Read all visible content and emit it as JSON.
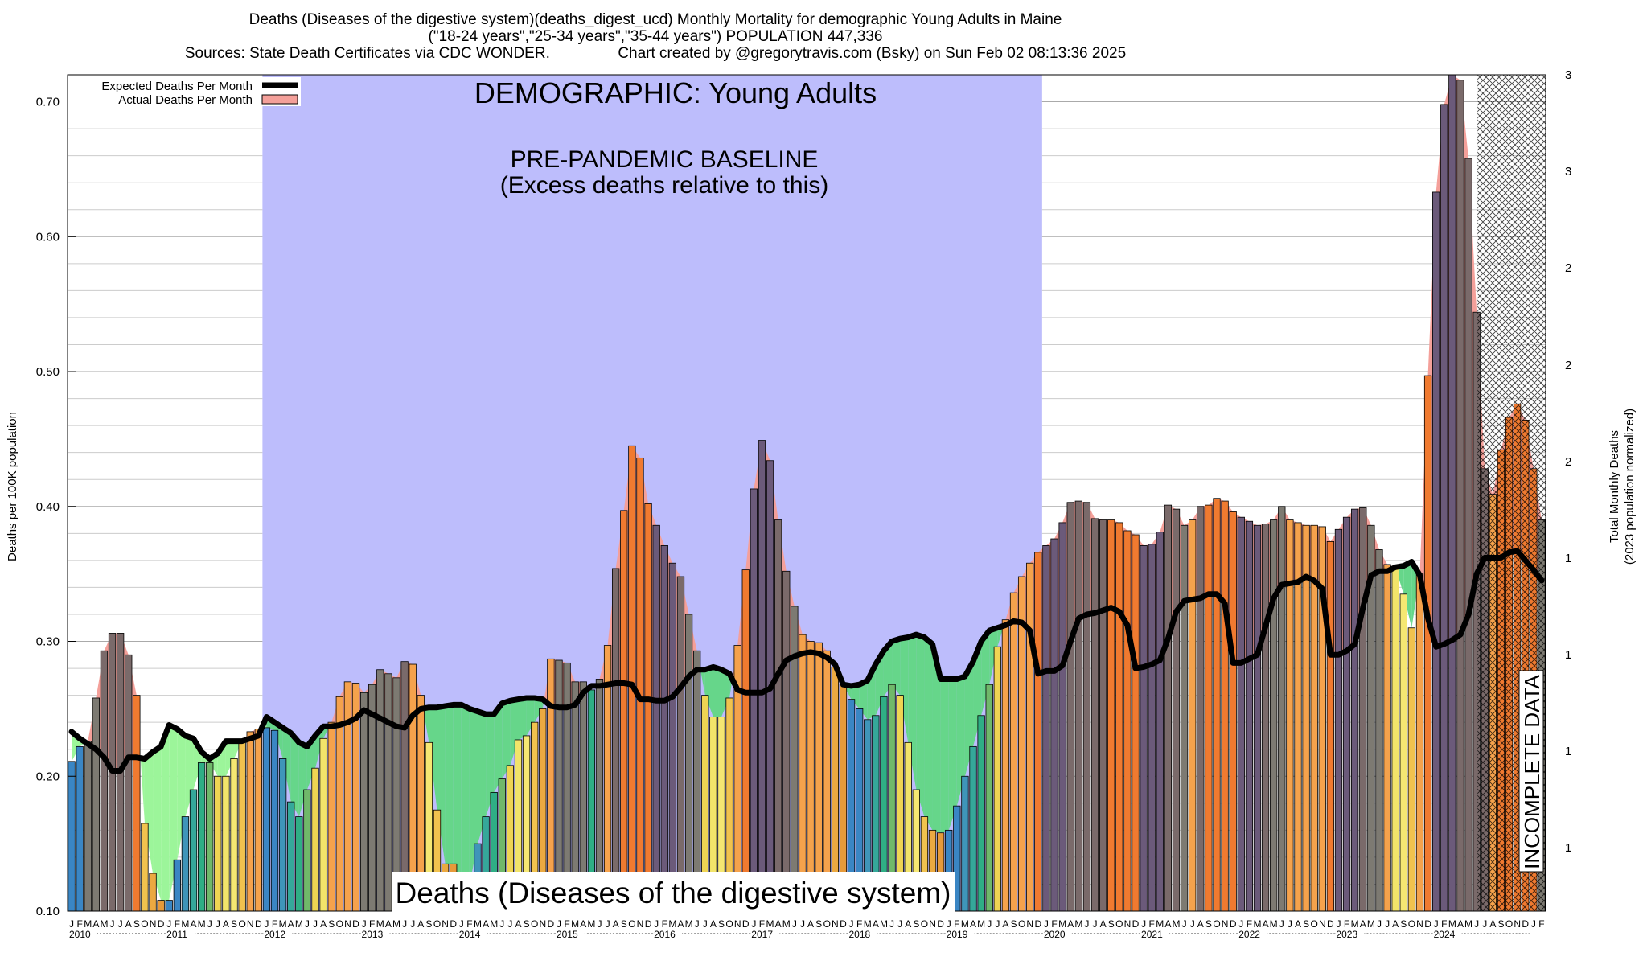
{
  "header": {
    "line1": "Deaths (Diseases of the digestive system)(deaths_digest_ucd) Monthly Mortality for demographic Young Adults in Maine",
    "line2": "(\"18-24 years\",\"25-34 years\",\"35-44 years\") POPULATION 447,336",
    "line3": "Sources: State Death Certificates via CDC WONDER.                Chart created by @gregorytravis.com (Bsky) on Sun Feb 02 08:13:36 2025"
  },
  "legend": {
    "expected": "Expected Deaths Per Month",
    "actual": "Actual Deaths Per Month"
  },
  "annotations": {
    "demographic": "DEMOGRAPHIC: Young Adults",
    "baseline_line1": "PRE-PANDEMIC BASELINE",
    "baseline_line2": "(Excess deaths relative to this)",
    "cause": "Deaths (Diseases of the digestive system)",
    "incomplete": "INCOMPLETE DATA"
  },
  "colors": {
    "baseline_band": "#bdbdfc",
    "excess_fill": "#f4a09a",
    "deficit_fill": "#66d68a",
    "deficit_fill_light": "#9cf59a",
    "expected_line": "#000000"
  },
  "chart_data": {
    "type": "bar",
    "ylabel": "Deaths per 100K population",
    "y2label_line1": "Total Monthly Deaths",
    "y2label_line2": "(2023 population normalized)",
    "ylim": [
      0.1,
      0.72
    ],
    "y_ticks": [
      "0.10",
      "0.20",
      "0.30",
      "0.40",
      "0.50",
      "0.60",
      "0.70"
    ],
    "y2_ticks": [
      "1",
      "1",
      "1",
      "1",
      "2",
      "2",
      "2",
      "3",
      "3"
    ],
    "months": [
      "J",
      "F",
      "M",
      "A",
      "M",
      "J",
      "J",
      "A",
      "S",
      "O",
      "N",
      "D"
    ],
    "years": [
      "2010",
      "2011",
      "2012",
      "2013",
      "2014",
      "2015",
      "2016",
      "2017",
      "2018",
      "2019",
      "2020",
      "2021",
      "2022",
      "2023",
      "2024"
    ],
    "baseline_period": [
      "2012-01",
      "2019-12"
    ],
    "incomplete_from": "2024-07",
    "grid": true,
    "legend_position": "top-left",
    "actual": [
      0.211,
      0.222,
      0.226,
      0.258,
      0.293,
      0.306,
      0.306,
      0.29,
      0.26,
      0.165,
      0.128,
      0.108,
      0.108,
      0.138,
      0.17,
      0.19,
      0.21,
      0.21,
      0.2,
      0.2,
      0.213,
      0.226,
      0.233,
      0.235,
      0.236,
      0.234,
      0.213,
      0.181,
      0.17,
      0.19,
      0.206,
      0.228,
      0.24,
      0.259,
      0.27,
      0.269,
      0.262,
      0.268,
      0.279,
      0.276,
      0.273,
      0.285,
      0.283,
      0.26,
      0.225,
      0.175,
      0.135,
      0.135,
      0.12,
      0.12,
      0.15,
      0.17,
      0.188,
      0.198,
      0.208,
      0.227,
      0.23,
      0.24,
      0.25,
      0.287,
      0.286,
      0.284,
      0.27,
      0.27,
      0.264,
      0.272,
      0.297,
      0.354,
      0.397,
      0.445,
      0.436,
      0.402,
      0.386,
      0.371,
      0.358,
      0.348,
      0.32,
      0.293,
      0.26,
      0.244,
      0.244,
      0.258,
      0.297,
      0.353,
      0.413,
      0.449,
      0.434,
      0.39,
      0.352,
      0.326,
      0.305,
      0.3,
      0.299,
      0.293,
      0.281,
      0.268,
      0.257,
      0.25,
      0.242,
      0.245,
      0.259,
      0.268,
      0.26,
      0.225,
      0.19,
      0.17,
      0.16,
      0.158,
      0.16,
      0.178,
      0.2,
      0.222,
      0.245,
      0.268,
      0.296,
      0.316,
      0.336,
      0.348,
      0.358,
      0.366,
      0.371,
      0.376,
      0.388,
      0.403,
      0.404,
      0.403,
      0.391,
      0.39,
      0.39,
      0.388,
      0.382,
      0.379,
      0.371,
      0.372,
      0.381,
      0.401,
      0.398,
      0.386,
      0.39,
      0.4,
      0.401,
      0.406,
      0.404,
      0.396,
      0.392,
      0.389,
      0.386,
      0.387,
      0.39,
      0.4,
      0.39,
      0.388,
      0.386,
      0.386,
      0.385,
      0.374,
      0.383,
      0.392,
      0.398,
      0.399,
      0.386,
      0.368,
      0.357,
      0.355,
      0.335,
      0.31,
      0.35,
      0.497,
      0.633,
      0.698,
      0.72,
      0.716,
      0.658,
      0.544,
      0.428,
      0.409,
      0.442,
      0.466,
      0.476,
      0.464,
      0.428,
      0.39
    ],
    "expected": [
      0.233,
      0.228,
      0.224,
      0.22,
      0.214,
      0.204,
      0.204,
      0.214,
      0.214,
      0.213,
      0.218,
      0.222,
      0.238,
      0.235,
      0.23,
      0.228,
      0.218,
      0.213,
      0.217,
      0.226,
      0.226,
      0.226,
      0.228,
      0.23,
      0.244,
      0.24,
      0.236,
      0.232,
      0.225,
      0.222,
      0.23,
      0.237,
      0.237,
      0.238,
      0.24,
      0.243,
      0.249,
      0.246,
      0.243,
      0.24,
      0.237,
      0.236,
      0.245,
      0.25,
      0.251,
      0.251,
      0.252,
      0.253,
      0.253,
      0.25,
      0.248,
      0.246,
      0.246,
      0.254,
      0.256,
      0.257,
      0.258,
      0.258,
      0.257,
      0.252,
      0.251,
      0.251,
      0.253,
      0.262,
      0.267,
      0.267,
      0.268,
      0.269,
      0.269,
      0.268,
      0.257,
      0.257,
      0.256,
      0.256,
      0.259,
      0.266,
      0.274,
      0.279,
      0.279,
      0.281,
      0.279,
      0.276,
      0.264,
      0.262,
      0.262,
      0.262,
      0.265,
      0.276,
      0.286,
      0.289,
      0.291,
      0.292,
      0.291,
      0.288,
      0.283,
      0.268,
      0.267,
      0.268,
      0.271,
      0.283,
      0.293,
      0.3,
      0.302,
      0.303,
      0.305,
      0.303,
      0.298,
      0.272,
      0.272,
      0.272,
      0.274,
      0.285,
      0.3,
      0.308,
      0.31,
      0.312,
      0.315,
      0.314,
      0.308,
      0.276,
      0.278,
      0.278,
      0.282,
      0.3,
      0.317,
      0.32,
      0.321,
      0.323,
      0.325,
      0.322,
      0.312,
      0.28,
      0.281,
      0.283,
      0.286,
      0.302,
      0.322,
      0.33,
      0.331,
      0.332,
      0.335,
      0.335,
      0.328,
      0.284,
      0.284,
      0.287,
      0.29,
      0.311,
      0.332,
      0.342,
      0.343,
      0.344,
      0.348,
      0.345,
      0.339,
      0.29,
      0.29,
      0.293,
      0.298,
      0.325,
      0.349,
      0.352,
      0.352,
      0.355,
      0.356,
      0.359,
      0.349,
      0.317,
      0.296,
      0.298,
      0.301,
      0.305,
      0.32,
      0.35,
      0.362,
      0.362,
      0.362,
      0.366,
      0.367,
      0.36,
      0.353,
      0.345
    ]
  }
}
